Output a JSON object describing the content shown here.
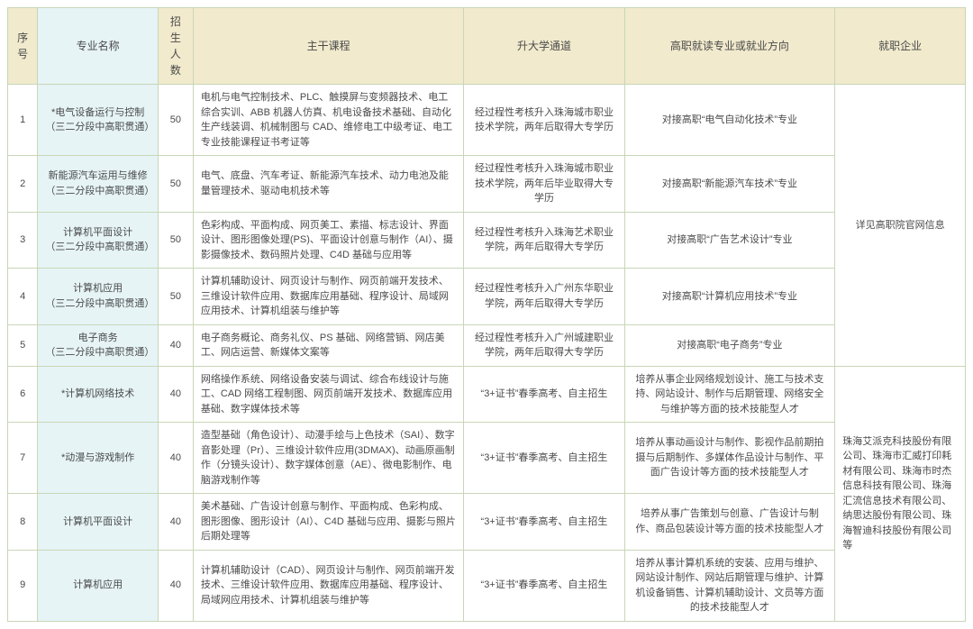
{
  "colors": {
    "border": "#c9d6b8",
    "header_bg": "#f1eacd",
    "name_bg": "#e6f4f6",
    "text": "#4a4a4a",
    "cell_bg": "#ffffff",
    "th_font_size": "12px",
    "td_font_size": "11px"
  },
  "headers": {
    "idx": "序号",
    "name": "专业名称",
    "num": "招生人数",
    "course": "主干课程",
    "univ": "升大学通道",
    "dir": "高职就读专业或就业方向",
    "emp": "就职企业"
  },
  "rows": [
    {
      "idx": "1",
      "name": "*电气设备运行与控制\n（三二分段中高职贯通）",
      "num": "50",
      "course": "电机与电气控制技术、PLC、触摸屏与变频器技术、电工综合实训、ABB 机器人仿真、机电设备技术基础、自动化生产线装调、机械制图与 CAD、维修电工中级考证、电工专业技能课程证书考证等",
      "univ": "经过程性考核升入珠海城市职业技术学院，两年后取得大专学历",
      "dir": "对接高职“电气自动化技术”专业"
    },
    {
      "idx": "2",
      "name": "新能源汽车运用与维修\n（三二分段中高职贯通）",
      "num": "50",
      "course": "电气、底盘、汽车考证、新能源汽车技术、动力电池及能量管理技术、驱动电机技术等",
      "univ": "经过程性考核升入珠海城市职业技术学院，两年后毕业取得大专学历",
      "dir": "对接高职“新能源汽车技术”专业"
    },
    {
      "idx": "3",
      "name": "计算机平面设计\n（三二分段中高职贯通）",
      "num": "50",
      "course": "色彩构成、平面构成、网页美工、素描、标志设计、界面设计、图形图像处理(PS)、平面设计创意与制作（AI）、摄影摄像技术、数码照片处理、C4D 基础与应用等",
      "univ": "经过程性考核升入珠海艺术职业学院，两年后取得大专学历",
      "dir": "对接高职“广告艺术设计”专业"
    },
    {
      "idx": "4",
      "name": "计算机应用\n（三二分段中高职贯通）",
      "num": "50",
      "course": "计算机辅助设计、网页设计与制作、网页前端开发技术、三维设计软件应用、数据库应用基础、程序设计、局域网应用技术、计算机组装与维护等",
      "univ": "经过程性考核升入广州东华职业学院，两年后取得大专学历",
      "dir": "对接高职“计算机应用技术”专业"
    },
    {
      "idx": "5",
      "name": "电子商务\n（三二分段中高职贯通）",
      "num": "40",
      "course": "电子商务概论、商务礼仪、PS 基础、网络营销、网店美工、网店运营、新媒体文案等",
      "univ": "经过程性考核升入广州城建职业学院，两年后取得大专学历",
      "dir": "对接高职“电子商务”专业"
    },
    {
      "idx": "6",
      "name": "*计算机网络技术",
      "num": "40",
      "course": "网络操作系统、网络设备安装与调试、综合布线设计与施工、CAD 网络工程制图、网页前端开发技术、数据库应用基础、数字媒体技术等",
      "univ": "“3+证书”春季高考、自主招生",
      "dir": "培养从事企业网络规划设计、施工与技术支持、网站设计、制作与后期管理、网络安全与维护等方面的技术技能型人才"
    },
    {
      "idx": "7",
      "name": "*动漫与游戏制作",
      "num": "40",
      "course": "造型基础（角色设计）、动漫手绘与上色技术（SAI）、数字音影处理（Pr）、三维设计软件应用(3DMAX)、动画原画制作（分镜头设计）、数字媒体创意（AE）、微电影制作、电脑游戏制作等",
      "univ": "“3+证书”春季高考、自主招生",
      "dir": "培养从事动画设计与制作、影视作品前期拍摄与后期制作、多媒体作品设计与制作、平面广告设计等方面的技术技能型人才"
    },
    {
      "idx": "8",
      "name": "计算机平面设计",
      "num": "40",
      "course": "美术基础、广告设计创意与制作、平面构成、色彩构成、图形图像、图形设计（AI）、C4D 基础与应用、摄影与照片后期处理等",
      "univ": "“3+证书”春季高考、自主招生",
      "dir": "培养从事广告策划与创意、广告设计与制作、商品包装设计等方面的技术技能型人才"
    },
    {
      "idx": "9",
      "name": "计算机应用",
      "num": "40",
      "course": "计算机辅助设计（CAD）、网页设计与制作、网页前端开发技术、三维设计软件应用、数据库应用基础、程序设计、局域网应用技术、计算机组装与维护等",
      "univ": "“3+证书”春季高考、自主招生",
      "dir": "培养从事计算机系统的安装、应用与维护、网站设计制作、网站后期管理与维护、计算机设备销售、计算机辅助设计、文员等方面的技术技能型人才"
    }
  ],
  "emp_group1": "详见高职院官网信息",
  "emp_group2": "珠海艾派克科技股份有限公司、珠海市汇威打印耗材有限公司、珠海市时杰信息科技有限公司、珠海汇流信息技术有限公司、纳思达股份有限公司、珠海智迪科技股份有限公司等"
}
